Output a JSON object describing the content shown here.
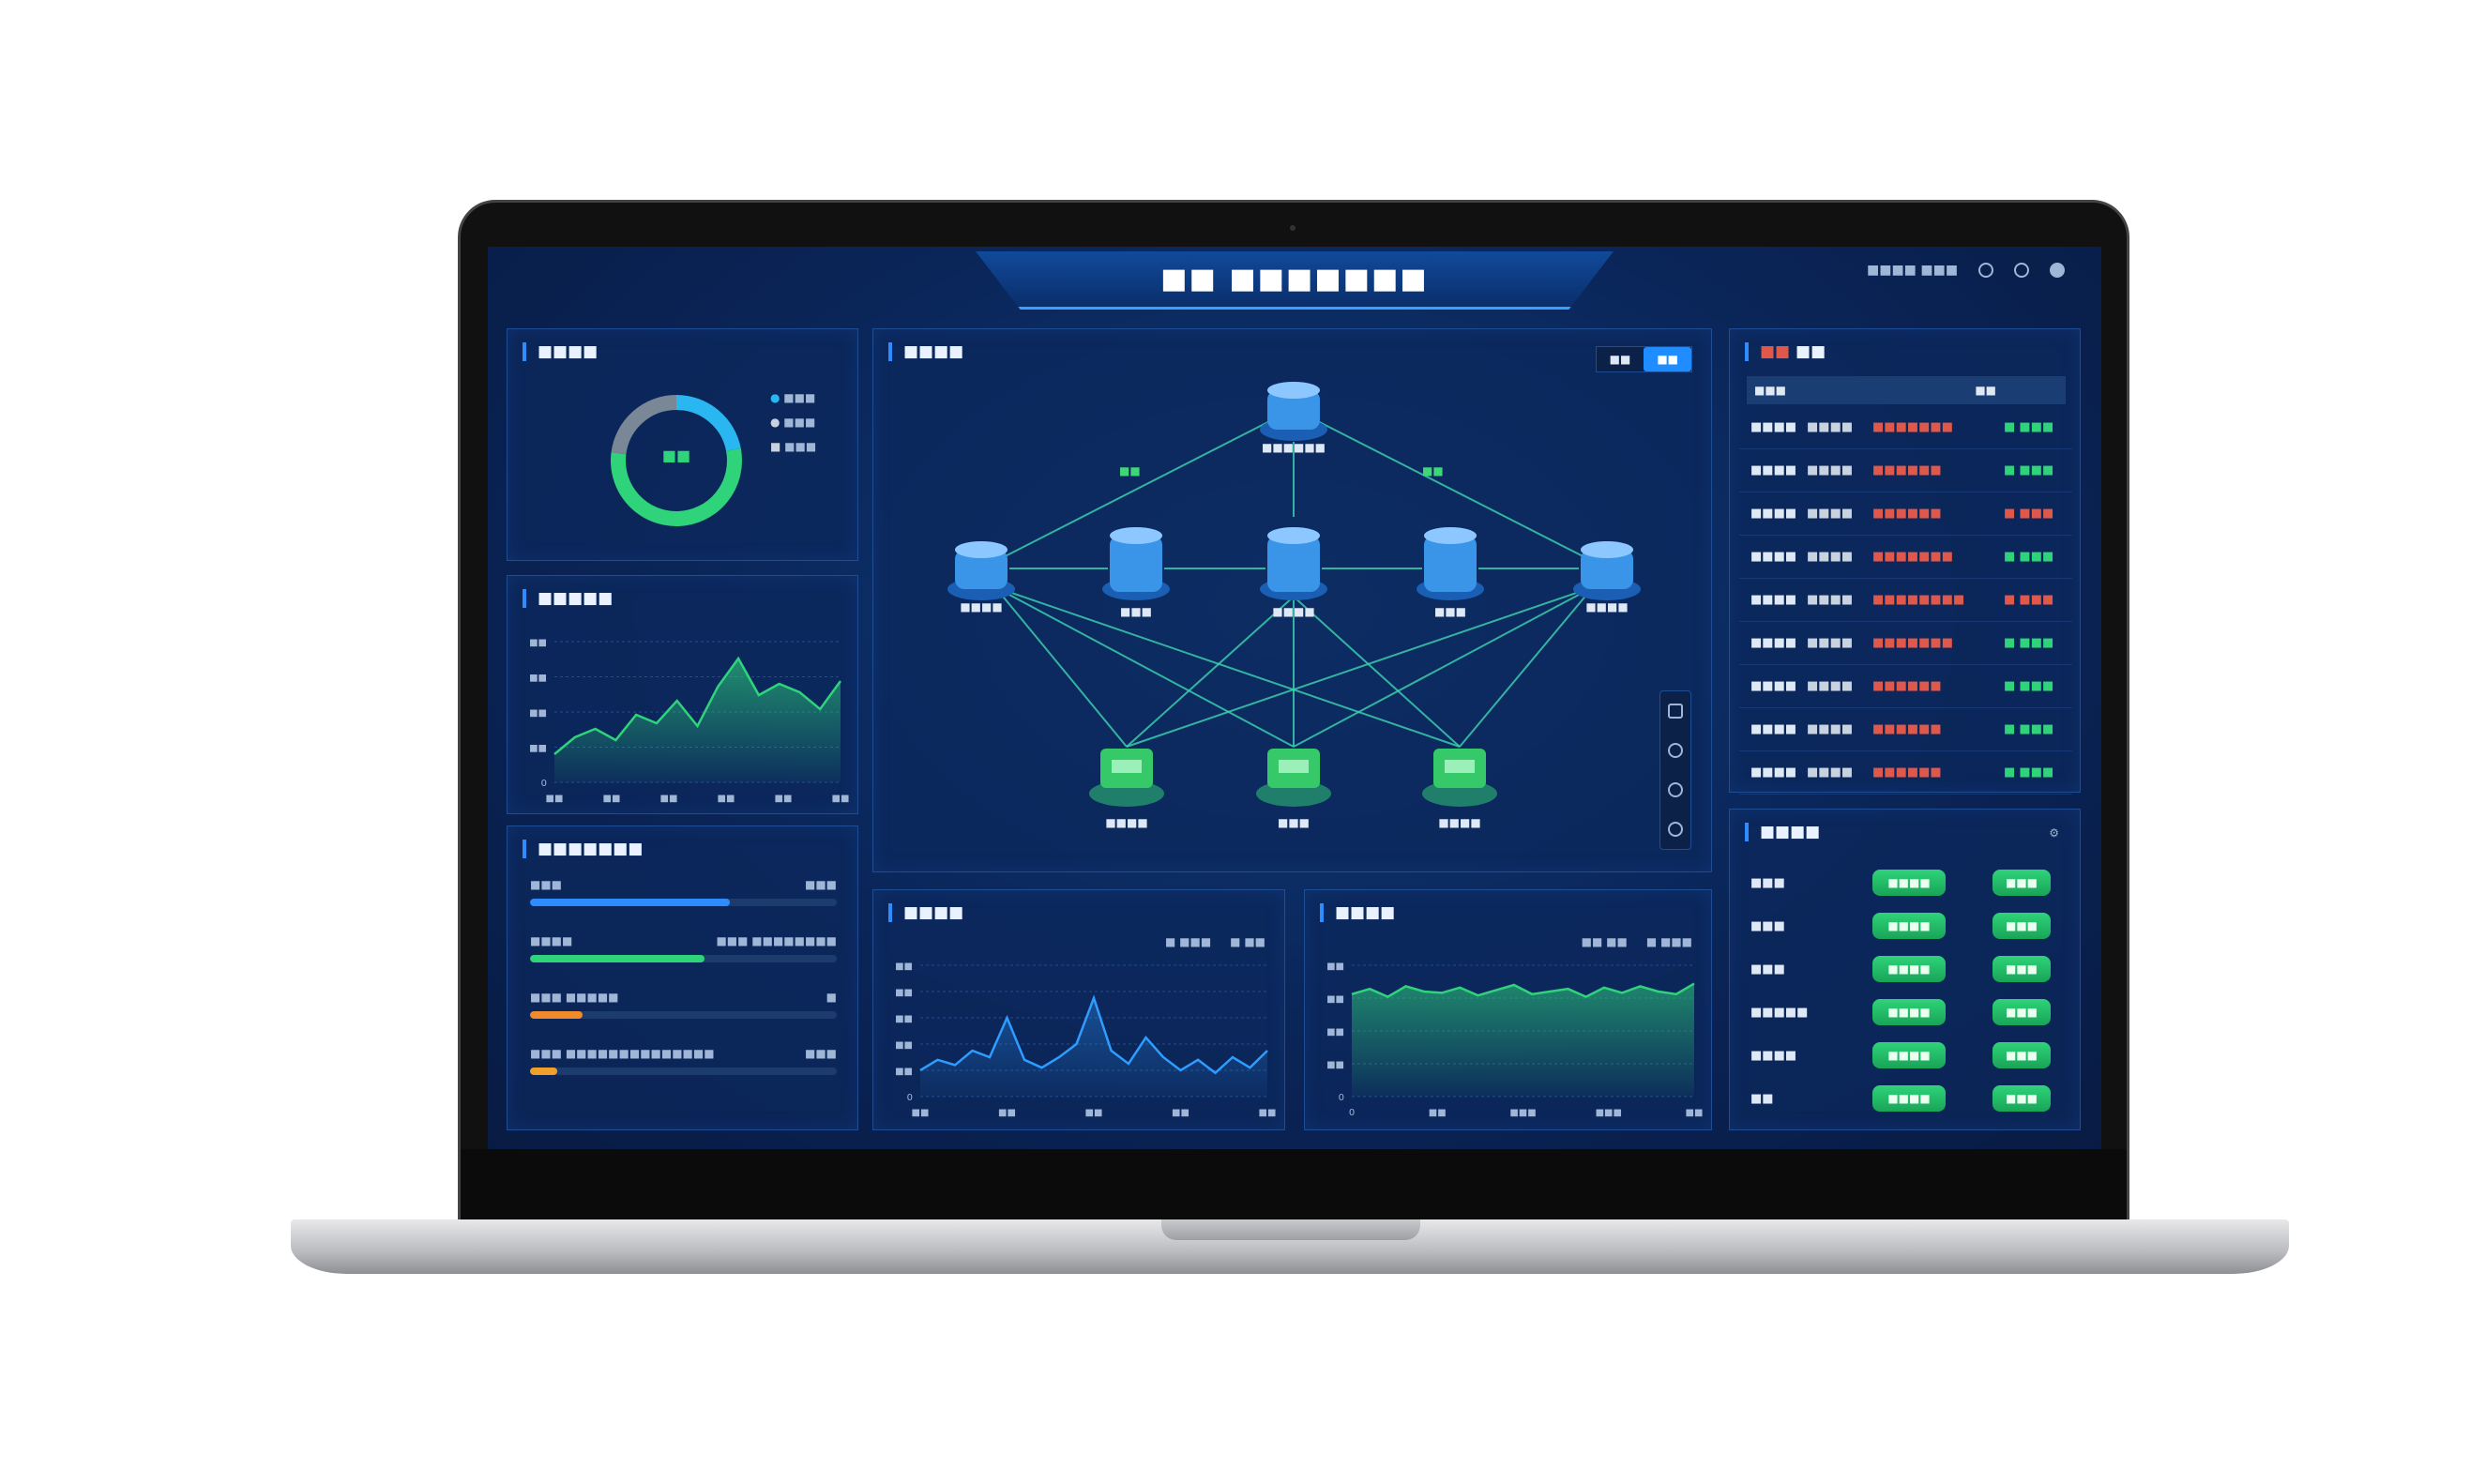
{
  "header": {
    "title": "■■ ■■■■■■■",
    "status_text": "■■■■ ■■■"
  },
  "colors": {
    "accent": "#2f8cff",
    "green": "#2fd37a",
    "red": "#e0584a",
    "bg": "#0a2558"
  },
  "panels": {
    "donut": {
      "title": "■■■■",
      "center": "■■",
      "legend": [
        "■■■",
        "■■■",
        "■■■"
      ],
      "segments": [
        {
          "color": "#2ab6f0",
          "fraction": 0.22
        },
        {
          "color": "#2fd37a",
          "fraction": 0.55
        },
        {
          "color": "#7a8797",
          "fraction": 0.23
        }
      ]
    },
    "area": {
      "title": "■■■■■",
      "y_ticks": [
        "■■",
        "■■",
        "■■",
        "■■",
        "0"
      ],
      "x_ticks": [
        "■■",
        "■■",
        "■■",
        "■■",
        "■■",
        "■■"
      ],
      "values": [
        20,
        32,
        38,
        30,
        48,
        42,
        58,
        40,
        68,
        88,
        62,
        70,
        64,
        52,
        72
      ]
    },
    "progress": {
      "title": "■■■■■■■",
      "items": [
        {
          "label": "■■■",
          "value_text": "■■■",
          "fraction": 0.65,
          "color": "#2f8cff"
        },
        {
          "label": "■■■■",
          "value_text": "■■■ ■■■■■■■■",
          "fraction": 0.57,
          "color": "#2fd37a"
        },
        {
          "label": "■■■ ■■■■■",
          "value_text": "■",
          "fraction": 0.17,
          "color": "#f08a2a"
        },
        {
          "label": "■■■ ■■■■■■■■■■■■■■",
          "value_text": "■■■",
          "fraction": 0.09,
          "color": "#f0a02a"
        }
      ]
    },
    "network": {
      "title": "■■■■",
      "toggle": [
        "■■",
        "■■"
      ],
      "nodes": {
        "top": "■■■■■■",
        "mid": [
          "■■■■",
          "■■■",
          "■■■■",
          "■■■",
          "■■■■"
        ],
        "bottom": [
          "■■■■",
          "■■■",
          "■■■■"
        ]
      },
      "edge_labels": [
        "■■",
        "■■"
      ]
    },
    "line1": {
      "title": "■■■■",
      "legend": [
        "■ ■■■",
        "■ ■■"
      ],
      "y_ticks": [
        "■■",
        "■■",
        "■■",
        "■■",
        "■■",
        "0"
      ],
      "x_ticks": [
        "■■",
        "■■",
        "■■",
        "■■",
        "■■"
      ],
      "values": [
        20,
        28,
        24,
        35,
        30,
        60,
        28,
        22,
        30,
        40,
        75,
        35,
        25,
        45,
        30,
        20,
        28,
        18,
        30,
        22,
        35
      ]
    },
    "line2": {
      "title": "■■■■",
      "legend": [
        "■■ ■■",
        "■ ■■■"
      ],
      "y_ticks": [
        "■■",
        "■■",
        "■■",
        "■■",
        "0"
      ],
      "x_ticks": [
        "0",
        "■■",
        "■■■",
        "■■■",
        "■■"
      ],
      "values": [
        78,
        82,
        76,
        84,
        80,
        79,
        83,
        77,
        81,
        85,
        78,
        80,
        82,
        76,
        83,
        79,
        84,
        80,
        78,
        86
      ]
    },
    "alerts": {
      "title_red": "■■",
      "title": "■■",
      "headers": [
        "■■■",
        "■■"
      ],
      "rows": [
        {
          "a": "■■■■",
          "b": "■■■■",
          "c": "■■■■■■■",
          "d": "■ ■■■",
          "status": "ok"
        },
        {
          "a": "■■■■",
          "b": "■■■■",
          "c": "■■■■■■",
          "d": "■ ■■■",
          "status": "ok"
        },
        {
          "a": "■■■■",
          "b": "■■■■",
          "c": "■■■■■■",
          "d": "■ ■■■",
          "status": "warn"
        },
        {
          "a": "■■■■",
          "b": "■■■■",
          "c": "■■■■■■■",
          "d": "■ ■■■",
          "status": "ok"
        },
        {
          "a": "■■■■",
          "b": "■■■■",
          "c": "■■■■■■■■",
          "d": "■ ■■■",
          "status": "warn"
        },
        {
          "a": "■■■■",
          "b": "■■■■",
          "c": "■■■■■■■",
          "d": "■ ■■■",
          "status": "ok"
        },
        {
          "a": "■■■■",
          "b": "■■■■",
          "c": "■■■■■■",
          "d": "■ ■■■",
          "status": "ok"
        },
        {
          "a": "■■■■",
          "b": "■■■■",
          "c": "■■■■■■",
          "d": "■ ■■■",
          "status": "ok"
        },
        {
          "a": "■■■■",
          "b": "■■■■",
          "c": "■■■■■■",
          "d": "■ ■■■",
          "status": "ok"
        }
      ]
    },
    "services": {
      "title": "■■■■",
      "rows": [
        {
          "name": "■■■",
          "btn1": "■■■■",
          "btn2": "■■■"
        },
        {
          "name": "■■■",
          "btn1": "■■■■",
          "btn2": "■■■"
        },
        {
          "name": "■■■",
          "btn1": "■■■■",
          "btn2": "■■■"
        },
        {
          "name": "■■■■■",
          "btn1": "■■■■",
          "btn2": "■■■"
        },
        {
          "name": "■■■■",
          "btn1": "■■■■",
          "btn2": "■■■"
        },
        {
          "name": "■■",
          "btn1": "■■■■",
          "btn2": "■■■"
        }
      ]
    }
  }
}
